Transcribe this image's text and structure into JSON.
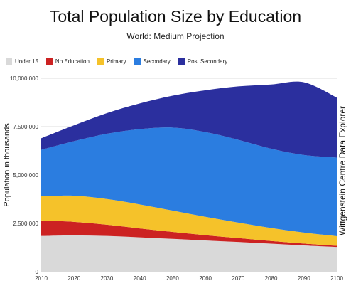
{
  "title": "Total Population Size by Education",
  "subtitle": "World: Medium Projection",
  "side_label": "Wittgenstein Centre Data Explorer",
  "chart_data": {
    "type": "area",
    "stacked": true,
    "title": "Total Population Size by Education",
    "subtitle": "World: Medium Projection",
    "ylabel": "Population in thousands",
    "xlabel": "",
    "ylim": [
      0,
      10000000
    ],
    "xlim": [
      2010,
      2100
    ],
    "yticks": [
      0,
      2500000,
      5000000,
      7500000,
      10000000
    ],
    "ytick_labels": [
      "0",
      "2,500,000",
      "5,000,000",
      "7,500,000",
      "10,000,000"
    ],
    "x": [
      2010,
      2020,
      2030,
      2040,
      2050,
      2060,
      2070,
      2080,
      2090,
      2100
    ],
    "grid": true,
    "legend_position": "top-left",
    "series": [
      {
        "name": "Under 15",
        "color": "#d9d9d9",
        "values": [
          1850000,
          1880000,
          1850000,
          1780000,
          1700000,
          1620000,
          1540000,
          1450000,
          1360000,
          1280000
        ]
      },
      {
        "name": "No Education",
        "color": "#cc2222",
        "values": [
          800000,
          700000,
          580000,
          460000,
          360000,
          270000,
          200000,
          140000,
          95000,
          60000
        ]
      },
      {
        "name": "Primary",
        "color": "#f5c22a",
        "values": [
          1250000,
          1350000,
          1330000,
          1240000,
          1100000,
          950000,
          800000,
          670000,
          570000,
          500000
        ]
      },
      {
        "name": "Secondary",
        "color": "#2b7de0",
        "values": [
          2400000,
          2820000,
          3370000,
          3890000,
          4290000,
          4380000,
          4280000,
          4100000,
          4010000,
          4060000
        ]
      },
      {
        "name": "Post Secondary",
        "color": "#2b2f9e",
        "values": [
          600000,
          820000,
          1070000,
          1330000,
          1650000,
          2160000,
          2760000,
          3320000,
          3760000,
          3100000
        ]
      }
    ]
  }
}
